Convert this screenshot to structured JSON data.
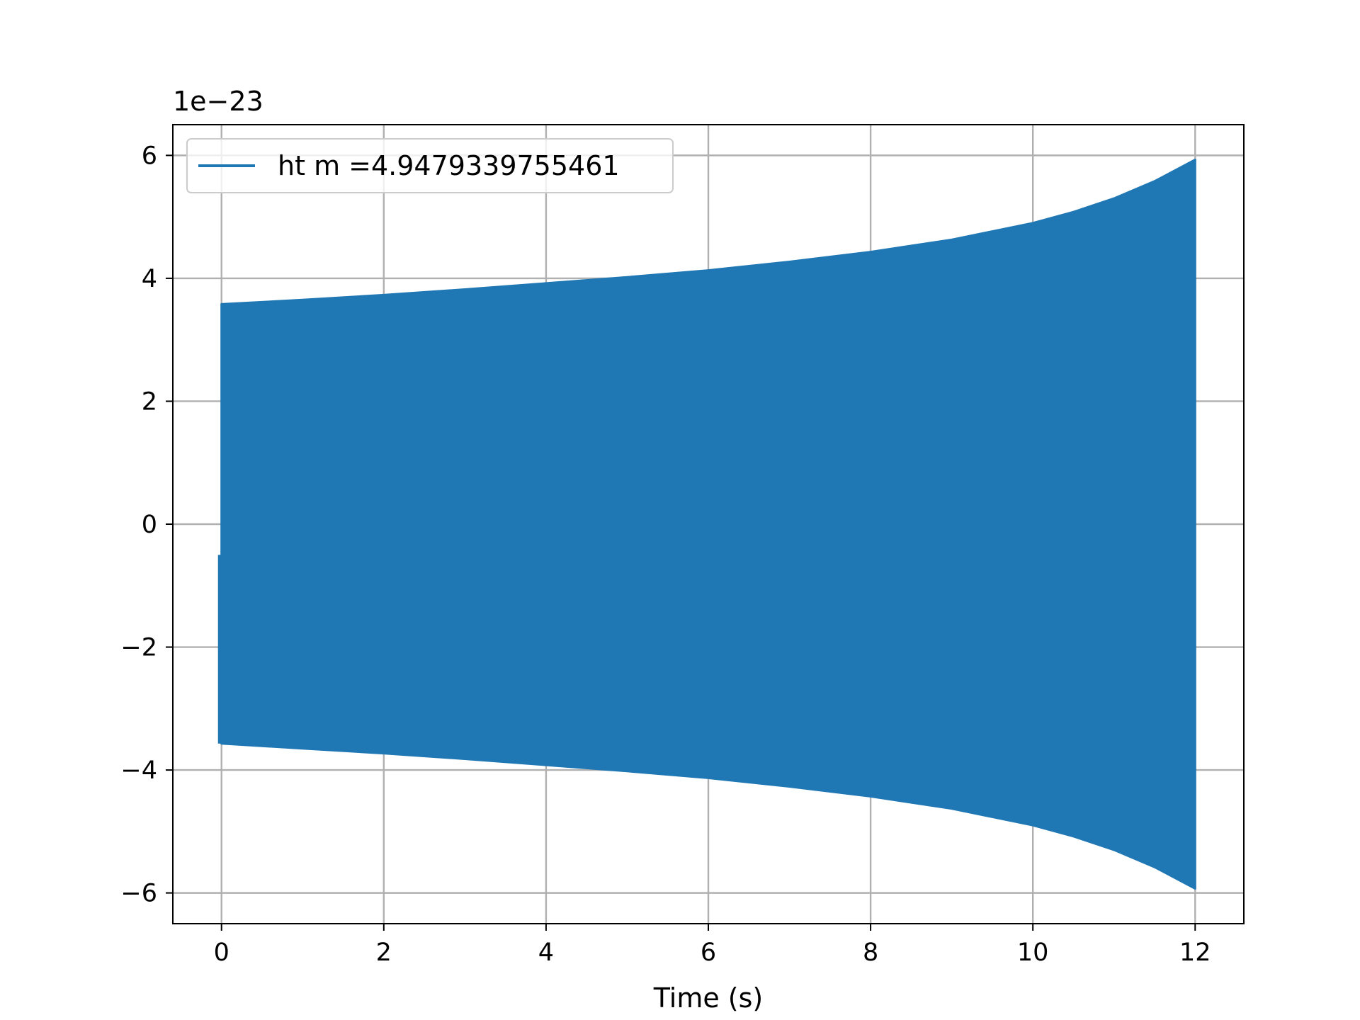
{
  "chart_data": {
    "type": "line",
    "title": "",
    "xlabel": "Time (s)",
    "ylabel": "",
    "y_offset_label": "1e−23",
    "y_scale_factor": 1e-23,
    "xlim": [
      -0.6,
      12.6
    ],
    "ylim": [
      -6.5,
      6.5
    ],
    "x_ticks": [
      0,
      2,
      4,
      6,
      8,
      10,
      12
    ],
    "x_tick_labels": [
      "0",
      "2",
      "4",
      "6",
      "8",
      "10",
      "12"
    ],
    "y_ticks": [
      -6,
      -4,
      -2,
      0,
      2,
      4,
      6
    ],
    "y_tick_labels": [
      "−6",
      "−4",
      "−2",
      "0",
      "2",
      "4",
      "6"
    ],
    "grid": true,
    "legend_position": "upper-left",
    "series": [
      {
        "name": "ht m =4.9479339755461",
        "color": "#1f77b4",
        "description_kind": "oscillating signal envelope (chirp)",
        "envelope": {
          "t": [
            0,
            1,
            2,
            3,
            4,
            5,
            6,
            7,
            8,
            9,
            10,
            10.5,
            11,
            11.5,
            12
          ],
          "upper": [
            3.58,
            3.65,
            3.73,
            3.82,
            3.92,
            4.02,
            4.13,
            4.27,
            4.43,
            4.63,
            4.9,
            5.08,
            5.3,
            5.58,
            5.93
          ],
          "lower": [
            -3.57,
            -3.65,
            -3.73,
            -3.82,
            -3.92,
            -4.02,
            -4.13,
            -4.27,
            -4.43,
            -4.63,
            -4.9,
            -5.08,
            -5.3,
            -5.58,
            -5.93
          ]
        },
        "start_value": -0.5,
        "start_segment": [
          -0.5,
          -3.57
        ]
      }
    ]
  }
}
